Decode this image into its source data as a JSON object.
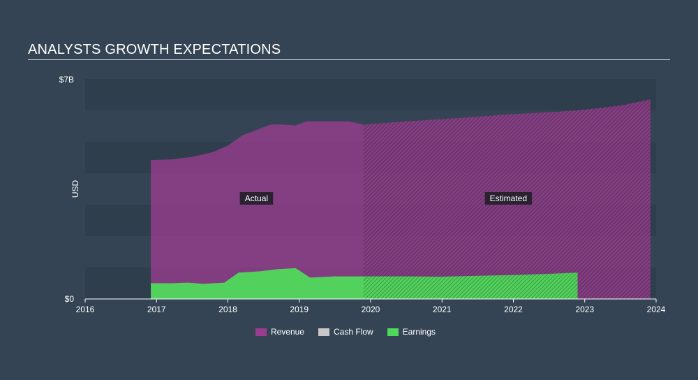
{
  "header": {
    "title": "ANALYSTS GROWTH EXPECTATIONS"
  },
  "chart_data": {
    "type": "area",
    "title": "ANALYSTS GROWTH EXPECTATIONS",
    "ylabel": "USD",
    "xlim": [
      2016,
      2024
    ],
    "ylim": [
      0,
      7000000000
    ],
    "y_tick_labels": [
      "$0",
      "$7B"
    ],
    "x_ticks": [
      2016,
      2017,
      2018,
      2019,
      2020,
      2021,
      2022,
      2023,
      2024
    ],
    "actual_end": 2019.9,
    "region_labels": {
      "actual": "Actual",
      "estimated": "Estimated"
    },
    "legend_position": "bottom-center",
    "series": [
      {
        "name": "Revenue",
        "color": "#9a3d8f",
        "points": [
          [
            2016.92,
            4420000000.0
          ],
          [
            2017.2,
            4440000000.0
          ],
          [
            2017.5,
            4520000000.0
          ],
          [
            2017.8,
            4680000000.0
          ],
          [
            2018.0,
            4880000000.0
          ],
          [
            2018.2,
            5200000000.0
          ],
          [
            2018.45,
            5420000000.0
          ],
          [
            2018.6,
            5550000000.0
          ],
          [
            2018.75,
            5550000000.0
          ],
          [
            2018.95,
            5520000000.0
          ],
          [
            2019.1,
            5650000000.0
          ],
          [
            2019.3,
            5650000000.0
          ],
          [
            2019.5,
            5650000000.0
          ],
          [
            2019.7,
            5650000000.0
          ],
          [
            2019.9,
            5550000000.0
          ],
          [
            2020.5,
            5650000000.0
          ],
          [
            2021.0,
            5720000000.0
          ],
          [
            2021.5,
            5800000000.0
          ],
          [
            2022.0,
            5880000000.0
          ],
          [
            2022.5,
            5940000000.0
          ],
          [
            2022.9,
            6000000000.0
          ],
          [
            2023.5,
            6150000000.0
          ],
          [
            2023.92,
            6350000000.0
          ]
        ]
      },
      {
        "name": "Earnings",
        "color": "#4fd95a",
        "points": [
          [
            2016.92,
            500000000.0
          ],
          [
            2017.2,
            500000000.0
          ],
          [
            2017.45,
            520000000.0
          ],
          [
            2017.65,
            480000000.0
          ],
          [
            2017.95,
            520000000.0
          ],
          [
            2018.15,
            840000000.0
          ],
          [
            2018.45,
            880000000.0
          ],
          [
            2018.7,
            950000000.0
          ],
          [
            2018.95,
            980000000.0
          ],
          [
            2019.15,
            680000000.0
          ],
          [
            2019.5,
            720000000.0
          ],
          [
            2019.9,
            720000000.0
          ],
          [
            2020.5,
            720000000.0
          ],
          [
            2021.0,
            710000000.0
          ],
          [
            2021.5,
            740000000.0
          ],
          [
            2022.0,
            760000000.0
          ],
          [
            2022.5,
            800000000.0
          ],
          [
            2022.9,
            840000000.0
          ]
        ]
      }
    ],
    "legend": [
      {
        "name": "Revenue",
        "color": "#9a3d8f"
      },
      {
        "name": "Cash Flow",
        "color": "#c8c8c8"
      },
      {
        "name": "Earnings",
        "color": "#4fd95a"
      }
    ]
  }
}
